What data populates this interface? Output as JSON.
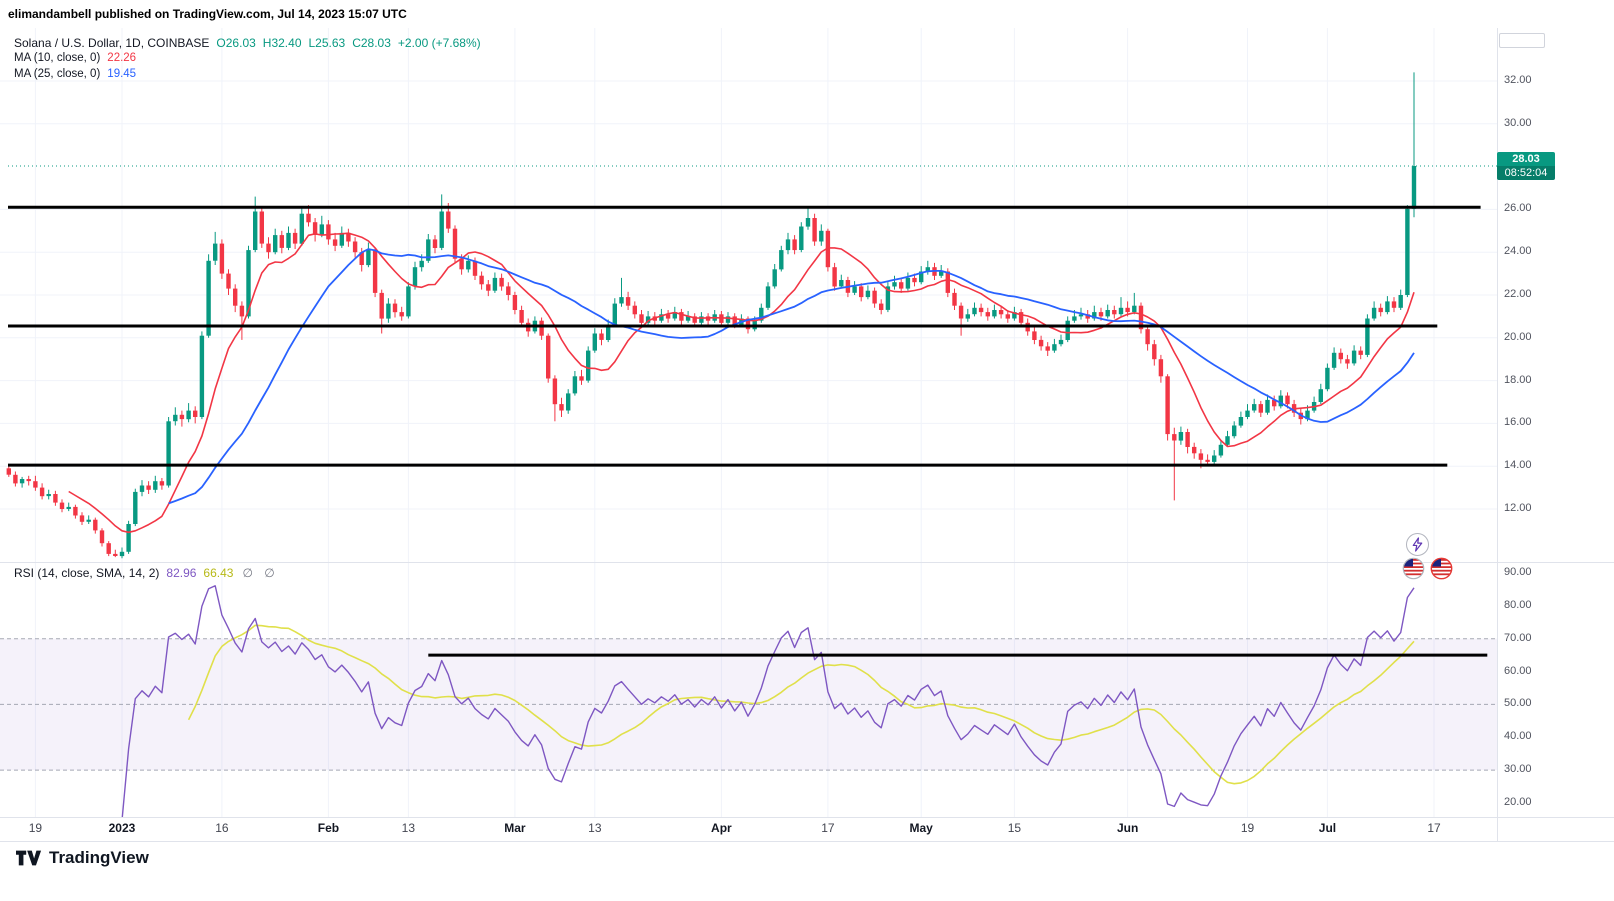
{
  "header": {
    "published_line": "elimandambell published on TradingView.com, Jul 14, 2023 15:07 UTC"
  },
  "footer": {
    "logo_text": "TradingView"
  },
  "chart_data": {
    "type": "candlestick",
    "legend": {
      "title": "Solana / U.S. Dollar, 1D, COINBASE",
      "ohlc": [
        "O26.03",
        "H32.40",
        "L25.63",
        "C28.03"
      ],
      "change": "+2.00 (+7.68%)"
    },
    "ma": [
      {
        "label": "MA (10, close, 0)",
        "value": "22.26",
        "period": 10,
        "color": "#f23645"
      },
      {
        "label": "MA (25, close, 0)",
        "value": "19.45",
        "period": 25,
        "color": "#2962ff"
      }
    ],
    "current_price": {
      "label": "28.03",
      "countdown": "08:52:04",
      "price": 28.03
    },
    "colors": {
      "up": "#089981",
      "down": "#f23645",
      "grid": "#f0f3fa",
      "frame": "#e0e3eb",
      "dashed": "#a5a8b4",
      "axis_text": "#50535e",
      "text": "#131722",
      "black_line": "#000000"
    },
    "price_axis": {
      "min": 9.5,
      "max": 33,
      "ticks": [
        "32.00",
        "30.00",
        "26.00",
        "24.00",
        "22.00",
        "20.00",
        "18.00",
        "16.00",
        "14.00",
        "12.00"
      ]
    },
    "time_axis": {
      "ticks": [
        {
          "label": "19",
          "day": 4,
          "bold": false
        },
        {
          "label": "2023",
          "day": 17,
          "bold": true
        },
        {
          "label": "16",
          "day": 32,
          "bold": false
        },
        {
          "label": "Feb",
          "day": 48,
          "bold": true
        },
        {
          "label": "13",
          "day": 60,
          "bold": false
        },
        {
          "label": "Mar",
          "day": 76,
          "bold": true
        },
        {
          "label": "13",
          "day": 88,
          "bold": false
        },
        {
          "label": "Apr",
          "day": 107,
          "bold": true
        },
        {
          "label": "17",
          "day": 123,
          "bold": false
        },
        {
          "label": "May",
          "day": 137,
          "bold": true
        },
        {
          "label": "15",
          "day": 151,
          "bold": false
        },
        {
          "label": "Jun",
          "day": 168,
          "bold": true
        },
        {
          "label": "19",
          "day": 186,
          "bold": false
        },
        {
          "label": "Jul",
          "day": 198,
          "bold": true
        },
        {
          "label": "17",
          "day": 214,
          "bold": false
        }
      ]
    },
    "horizontal_lines": [
      {
        "price": 26.1,
        "to_day": 221
      },
      {
        "price": 20.55,
        "to_day": 214.5
      },
      {
        "price": 14.05,
        "to_day": 216
      }
    ],
    "rsi": {
      "legend": "RSI (14, close, SMA, 14, 2)",
      "value": "82.96",
      "sma_value": "66.43",
      "symbols": "∅ ∅",
      "period": 14,
      "sma_period": 14,
      "ticks": [
        "90.00",
        "80.00",
        "70.00",
        "60.00",
        "50.00",
        "40.00",
        "30.00",
        "20.00"
      ],
      "levels": [
        70,
        50,
        30
      ],
      "band": [
        30,
        70
      ],
      "band_color": "#7e57c2",
      "band_opacity": 0.08,
      "line_color": "#7e57c2",
      "sma_color": "#e0e04a",
      "sma_value_color": "#b7b916",
      "trendline": {
        "value": 65,
        "from_day": 63,
        "to_day": 222
      }
    },
    "candles": [
      [
        13.9,
        14.05,
        13.5,
        13.6
      ],
      [
        13.6,
        13.75,
        13.05,
        13.2
      ],
      [
        13.2,
        13.5,
        13.0,
        13.4
      ],
      [
        13.4,
        13.55,
        13.1,
        13.3
      ],
      [
        13.3,
        13.55,
        12.85,
        13.0
      ],
      [
        13.0,
        13.2,
        12.45,
        12.6
      ],
      [
        12.6,
        12.9,
        12.45,
        12.7
      ],
      [
        12.7,
        12.85,
        12.15,
        12.3
      ],
      [
        12.3,
        12.45,
        11.85,
        12.0
      ],
      [
        12.0,
        12.3,
        11.9,
        12.1
      ],
      [
        12.1,
        12.2,
        11.55,
        11.7
      ],
      [
        11.7,
        11.85,
        11.25,
        11.4
      ],
      [
        11.4,
        11.7,
        11.3,
        11.5
      ],
      [
        11.5,
        11.6,
        10.85,
        11.0
      ],
      [
        11.0,
        11.1,
        10.25,
        10.4
      ],
      [
        10.4,
        10.5,
        9.8,
        9.9
      ],
      [
        9.9,
        10.1,
        9.75,
        9.8
      ],
      [
        9.8,
        10.2,
        9.7,
        10.0
      ],
      [
        10.0,
        11.45,
        9.9,
        11.3
      ],
      [
        11.3,
        12.95,
        11.2,
        12.8
      ],
      [
        12.8,
        13.35,
        12.6,
        13.1
      ],
      [
        13.1,
        13.3,
        12.7,
        12.9
      ],
      [
        12.9,
        13.55,
        12.75,
        13.3
      ],
      [
        13.3,
        13.45,
        12.9,
        13.1
      ],
      [
        13.1,
        16.3,
        13.0,
        16.1
      ],
      [
        16.1,
        16.75,
        15.9,
        16.4
      ],
      [
        16.4,
        16.6,
        15.85,
        16.2
      ],
      [
        16.2,
        16.95,
        16.05,
        16.6
      ],
      [
        16.6,
        16.8,
        16.0,
        16.3
      ],
      [
        16.3,
        20.3,
        16.2,
        20.1
      ],
      [
        20.1,
        23.9,
        20.0,
        23.6
      ],
      [
        23.6,
        24.95,
        23.4,
        24.4
      ],
      [
        24.4,
        24.6,
        22.75,
        23.0
      ],
      [
        23.0,
        23.2,
        22.0,
        22.3
      ],
      [
        22.3,
        22.5,
        21.2,
        21.5
      ],
      [
        21.5,
        21.7,
        19.9,
        21.0
      ],
      [
        21.0,
        24.3,
        20.9,
        24.1
      ],
      [
        24.1,
        26.6,
        24.0,
        25.9
      ],
      [
        25.9,
        26.1,
        24.2,
        24.4
      ],
      [
        24.4,
        24.7,
        23.7,
        24.0
      ],
      [
        24.0,
        25.1,
        23.9,
        24.8
      ],
      [
        24.8,
        25.0,
        23.95,
        24.2
      ],
      [
        24.2,
        25.2,
        24.1,
        24.9
      ],
      [
        24.9,
        25.1,
        24.15,
        24.4
      ],
      [
        24.4,
        26.1,
        24.3,
        25.8
      ],
      [
        25.8,
        26.2,
        25.2,
        25.4
      ],
      [
        25.4,
        25.6,
        24.5,
        24.8
      ],
      [
        24.8,
        25.7,
        24.7,
        25.3
      ],
      [
        25.3,
        25.5,
        24.35,
        24.6
      ],
      [
        24.6,
        24.9,
        24.05,
        24.3
      ],
      [
        24.3,
        25.2,
        24.2,
        24.9
      ],
      [
        24.9,
        25.1,
        24.25,
        24.5
      ],
      [
        24.5,
        24.7,
        23.75,
        24.0
      ],
      [
        24.0,
        24.2,
        23.1,
        23.4
      ],
      [
        23.4,
        24.45,
        23.3,
        24.1
      ],
      [
        24.1,
        24.2,
        21.9,
        22.1
      ],
      [
        22.1,
        22.25,
        20.2,
        20.9
      ],
      [
        20.9,
        21.85,
        20.7,
        21.6
      ],
      [
        21.6,
        21.8,
        20.95,
        21.2
      ],
      [
        21.2,
        21.45,
        20.8,
        21.0
      ],
      [
        21.0,
        22.6,
        20.9,
        22.4
      ],
      [
        22.4,
        23.55,
        22.25,
        23.3
      ],
      [
        23.3,
        23.9,
        23.1,
        23.6
      ],
      [
        23.6,
        24.85,
        23.5,
        24.6
      ],
      [
        24.6,
        24.8,
        23.95,
        24.2
      ],
      [
        24.2,
        26.7,
        24.1,
        25.9
      ],
      [
        25.9,
        26.3,
        24.9,
        25.1
      ],
      [
        25.1,
        25.25,
        23.5,
        23.7
      ],
      [
        23.7,
        23.9,
        22.95,
        23.2
      ],
      [
        23.2,
        23.85,
        23.05,
        23.6
      ],
      [
        23.6,
        23.75,
        22.7,
        22.9
      ],
      [
        22.9,
        23.1,
        22.25,
        22.5
      ],
      [
        22.5,
        22.7,
        21.95,
        22.2
      ],
      [
        22.2,
        23.05,
        22.1,
        22.8
      ],
      [
        22.8,
        23.0,
        22.2,
        22.4
      ],
      [
        22.4,
        22.6,
        21.75,
        22.0
      ],
      [
        22.0,
        22.15,
        21.1,
        21.3
      ],
      [
        21.3,
        21.5,
        20.5,
        20.7
      ],
      [
        20.7,
        20.9,
        20.05,
        20.3
      ],
      [
        20.3,
        21.0,
        20.2,
        20.8
      ],
      [
        20.8,
        20.95,
        19.9,
        20.1
      ],
      [
        20.1,
        20.2,
        17.9,
        18.1
      ],
      [
        18.1,
        18.25,
        16.1,
        16.9
      ],
      [
        16.9,
        17.2,
        16.3,
        16.6
      ],
      [
        16.6,
        17.6,
        16.45,
        17.4
      ],
      [
        17.4,
        18.45,
        17.3,
        18.2
      ],
      [
        18.2,
        18.5,
        17.8,
        18.0
      ],
      [
        18.0,
        19.6,
        17.9,
        19.4
      ],
      [
        19.4,
        20.45,
        19.3,
        20.2
      ],
      [
        20.2,
        20.4,
        19.65,
        19.9
      ],
      [
        19.9,
        20.85,
        19.8,
        20.6
      ],
      [
        20.6,
        21.85,
        20.5,
        21.6
      ],
      [
        21.6,
        22.8,
        21.45,
        21.9
      ],
      [
        21.9,
        22.15,
        21.3,
        21.5
      ],
      [
        21.5,
        21.7,
        20.9,
        21.1
      ],
      [
        21.1,
        21.3,
        20.5,
        20.7
      ],
      [
        20.7,
        21.25,
        20.6,
        21.0
      ],
      [
        21.0,
        21.2,
        20.6,
        20.8
      ],
      [
        20.8,
        21.35,
        20.7,
        21.1
      ],
      [
        21.1,
        21.3,
        20.7,
        20.9
      ],
      [
        20.9,
        21.45,
        20.8,
        21.2
      ],
      [
        21.2,
        21.35,
        20.6,
        20.8
      ],
      [
        20.8,
        21.25,
        20.7,
        21.0
      ],
      [
        21.0,
        21.15,
        20.5,
        20.7
      ],
      [
        20.7,
        21.2,
        20.6,
        21.0
      ],
      [
        21.0,
        21.15,
        20.6,
        20.8
      ],
      [
        20.8,
        21.3,
        20.7,
        21.1
      ],
      [
        21.1,
        21.25,
        20.55,
        20.7
      ],
      [
        20.7,
        21.2,
        20.6,
        21.0
      ],
      [
        21.0,
        21.15,
        20.45,
        20.6
      ],
      [
        20.6,
        21.1,
        20.5,
        20.9
      ],
      [
        20.9,
        21.0,
        20.2,
        20.4
      ],
      [
        20.4,
        21.0,
        20.3,
        20.8
      ],
      [
        20.8,
        21.6,
        20.7,
        21.4
      ],
      [
        21.4,
        22.6,
        21.3,
        22.4
      ],
      [
        22.4,
        23.45,
        22.3,
        23.2
      ],
      [
        23.2,
        24.3,
        23.1,
        24.1
      ],
      [
        24.1,
        24.9,
        23.9,
        24.6
      ],
      [
        24.6,
        24.8,
        23.9,
        24.1
      ],
      [
        24.1,
        25.4,
        24.0,
        25.2
      ],
      [
        25.2,
        26.1,
        25.05,
        25.6
      ],
      [
        25.6,
        25.8,
        24.3,
        24.5
      ],
      [
        24.5,
        25.3,
        24.3,
        25.0
      ],
      [
        25.0,
        25.1,
        23.1,
        23.3
      ],
      [
        23.3,
        23.5,
        22.2,
        22.4
      ],
      [
        22.4,
        22.95,
        22.3,
        22.7
      ],
      [
        22.7,
        22.85,
        21.9,
        22.1
      ],
      [
        22.1,
        22.65,
        22.0,
        22.4
      ],
      [
        22.4,
        22.55,
        21.7,
        21.9
      ],
      [
        21.9,
        22.45,
        21.8,
        22.2
      ],
      [
        22.2,
        22.35,
        21.4,
        21.6
      ],
      [
        21.6,
        21.8,
        21.1,
        21.3
      ],
      [
        21.3,
        22.6,
        21.2,
        22.4
      ],
      [
        22.4,
        22.9,
        22.25,
        22.6
      ],
      [
        22.6,
        22.8,
        22.1,
        22.3
      ],
      [
        22.3,
        23.05,
        22.2,
        22.8
      ],
      [
        22.8,
        23.0,
        22.4,
        22.6
      ],
      [
        22.6,
        23.35,
        22.5,
        23.1
      ],
      [
        23.1,
        23.6,
        22.95,
        23.3
      ],
      [
        23.3,
        23.5,
        22.7,
        22.9
      ],
      [
        22.9,
        23.4,
        22.8,
        23.1
      ],
      [
        23.1,
        23.25,
        21.9,
        22.1
      ],
      [
        22.1,
        22.3,
        21.3,
        21.5
      ],
      [
        21.5,
        21.65,
        20.1,
        20.9
      ],
      [
        20.9,
        21.35,
        20.75,
        21.1
      ],
      [
        21.1,
        21.65,
        21.0,
        21.4
      ],
      [
        21.4,
        21.6,
        21.0,
        21.2
      ],
      [
        21.2,
        21.4,
        20.8,
        21.0
      ],
      [
        21.0,
        21.55,
        20.9,
        21.3
      ],
      [
        21.3,
        21.5,
        20.9,
        21.1
      ],
      [
        21.1,
        21.3,
        20.7,
        20.9
      ],
      [
        20.9,
        21.45,
        20.8,
        21.2
      ],
      [
        21.2,
        21.35,
        20.5,
        20.7
      ],
      [
        20.7,
        20.9,
        20.1,
        20.3
      ],
      [
        20.3,
        20.5,
        19.7,
        19.9
      ],
      [
        19.9,
        20.1,
        19.4,
        19.6
      ],
      [
        19.6,
        19.8,
        19.15,
        19.4
      ],
      [
        19.4,
        19.95,
        19.3,
        19.7
      ],
      [
        19.7,
        20.15,
        19.6,
        19.9
      ],
      [
        19.9,
        21.0,
        19.8,
        20.8
      ],
      [
        20.8,
        21.3,
        20.7,
        21.0
      ],
      [
        21.0,
        21.4,
        20.85,
        21.1
      ],
      [
        21.1,
        21.3,
        20.7,
        20.9
      ],
      [
        20.9,
        21.5,
        20.8,
        21.2
      ],
      [
        21.2,
        21.4,
        20.8,
        21.0
      ],
      [
        21.0,
        21.55,
        20.9,
        21.3
      ],
      [
        21.3,
        21.5,
        20.9,
        21.1
      ],
      [
        21.1,
        21.9,
        21.0,
        21.4
      ],
      [
        21.4,
        21.7,
        21.0,
        21.2
      ],
      [
        21.2,
        22.1,
        21.1,
        21.5
      ],
      [
        21.5,
        21.65,
        20.2,
        20.4
      ],
      [
        20.4,
        20.6,
        19.4,
        19.7
      ],
      [
        19.7,
        19.9,
        18.7,
        19.0
      ],
      [
        19.0,
        19.2,
        17.9,
        18.2
      ],
      [
        18.2,
        18.3,
        15.2,
        15.5
      ],
      [
        15.5,
        15.8,
        12.4,
        15.2
      ],
      [
        15.2,
        15.85,
        15.0,
        15.6
      ],
      [
        15.6,
        15.75,
        14.6,
        14.9
      ],
      [
        14.9,
        15.1,
        14.35,
        14.6
      ],
      [
        14.6,
        14.8,
        13.9,
        14.3
      ],
      [
        14.3,
        14.55,
        14.0,
        14.2
      ],
      [
        14.2,
        14.75,
        14.1,
        14.5
      ],
      [
        14.5,
        15.2,
        14.4,
        15.0
      ],
      [
        15.0,
        15.65,
        14.9,
        15.4
      ],
      [
        15.4,
        16.1,
        15.3,
        15.9
      ],
      [
        15.9,
        16.55,
        15.8,
        16.3
      ],
      [
        16.3,
        16.9,
        16.2,
        16.6
      ],
      [
        16.6,
        17.15,
        16.5,
        16.9
      ],
      [
        16.9,
        17.05,
        16.3,
        16.5
      ],
      [
        16.5,
        17.35,
        16.4,
        17.1
      ],
      [
        17.1,
        17.3,
        16.6,
        16.8
      ],
      [
        16.8,
        17.55,
        16.7,
        17.3
      ],
      [
        17.3,
        17.45,
        16.7,
        16.9
      ],
      [
        16.9,
        17.1,
        16.3,
        16.5
      ],
      [
        16.5,
        16.7,
        15.95,
        16.2
      ],
      [
        16.2,
        16.85,
        16.1,
        16.6
      ],
      [
        16.6,
        17.25,
        16.5,
        17.0
      ],
      [
        17.0,
        17.85,
        16.9,
        17.6
      ],
      [
        17.6,
        18.8,
        17.5,
        18.6
      ],
      [
        18.6,
        19.55,
        18.5,
        19.3
      ],
      [
        19.3,
        19.5,
        18.8,
        19.0
      ],
      [
        19.0,
        19.2,
        18.55,
        18.8
      ],
      [
        18.8,
        19.65,
        18.7,
        19.4
      ],
      [
        19.4,
        19.6,
        19.0,
        19.2
      ],
      [
        19.2,
        21.1,
        19.1,
        20.9
      ],
      [
        20.9,
        21.7,
        20.8,
        21.4
      ],
      [
        21.4,
        21.6,
        21.0,
        21.2
      ],
      [
        21.2,
        21.95,
        21.1,
        21.7
      ],
      [
        21.7,
        21.9,
        21.2,
        21.4
      ],
      [
        21.4,
        22.25,
        21.3,
        22.0
      ],
      [
        22.0,
        26.2,
        21.9,
        26.03
      ],
      [
        26.03,
        32.4,
        25.63,
        28.03
      ]
    ]
  }
}
